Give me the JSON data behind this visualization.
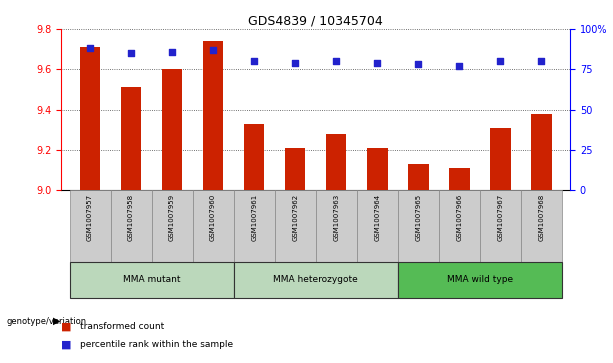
{
  "title": "GDS4839 / 10345704",
  "samples": [
    "GSM1007957",
    "GSM1007958",
    "GSM1007959",
    "GSM1007960",
    "GSM1007961",
    "GSM1007962",
    "GSM1007963",
    "GSM1007964",
    "GSM1007965",
    "GSM1007966",
    "GSM1007967",
    "GSM1007968"
  ],
  "bar_values": [
    9.71,
    9.51,
    9.6,
    9.74,
    9.33,
    9.21,
    9.28,
    9.21,
    9.13,
    9.11,
    9.31,
    9.38
  ],
  "scatter_values": [
    88,
    85,
    86,
    87,
    80,
    79,
    80,
    79,
    78,
    77,
    80,
    80
  ],
  "bar_color": "#cc2200",
  "scatter_color": "#2222cc",
  "ylim_left": [
    9.0,
    9.8
  ],
  "ylim_right": [
    0,
    100
  ],
  "yticks_left": [
    9.0,
    9.2,
    9.4,
    9.6,
    9.8
  ],
  "yticks_right": [
    0,
    25,
    50,
    75,
    100
  ],
  "ytick_labels_right": [
    "0",
    "25",
    "50",
    "75",
    "100%"
  ],
  "group_defs": [
    {
      "start": 0,
      "end": 3,
      "label": "MMA mutant",
      "color": "#bbd8bb"
    },
    {
      "start": 4,
      "end": 7,
      "label": "MMA heterozygote",
      "color": "#bbd8bb"
    },
    {
      "start": 8,
      "end": 11,
      "label": "MMA wild type",
      "color": "#55bb55"
    }
  ],
  "genotype_label": "genotype/variation",
  "legend": [
    {
      "label": "transformed count",
      "color": "#cc2200"
    },
    {
      "label": "percentile rank within the sample",
      "color": "#2222cc"
    }
  ],
  "tick_area_color": "#cccccc",
  "bar_width": 0.5,
  "figsize": [
    6.13,
    3.63
  ],
  "dpi": 100
}
